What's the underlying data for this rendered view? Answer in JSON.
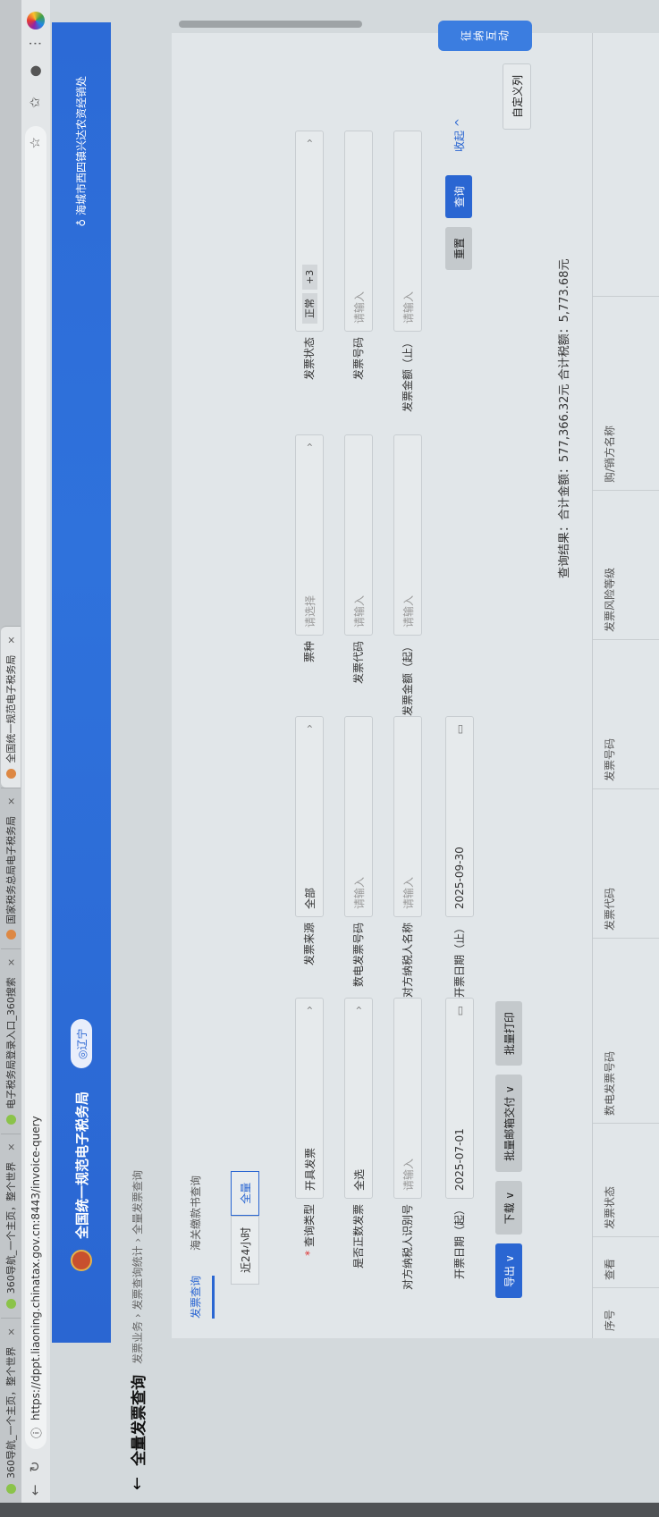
{
  "browser": {
    "tabs": [
      {
        "title": "360导航_一个主页，整个世界"
      },
      {
        "title": "360导航_一个主页，整个世界"
      },
      {
        "title": "电子税务局登录入口_360搜索"
      },
      {
        "title": "国家税务总局电子税务局"
      },
      {
        "title": "全国统一规范电子税务局"
      }
    ],
    "url": "https://dppt.liaoning.chinatax.gov.cn:8443/invoice-query"
  },
  "header": {
    "brand": "全国统一规范电子税务局",
    "region": "◎辽宁",
    "company": "海城市西四镇兴达农资经销处",
    "accent": "#2a66d2"
  },
  "page": {
    "title": "全量发票查询",
    "breadcrumb": [
      "发票业务",
      "发票查询统计",
      "全量发票查询"
    ],
    "tabs": [
      {
        "label": "发票查询",
        "active": true
      },
      {
        "label": "海关缴款书查询",
        "active": false
      }
    ],
    "quick_range": [
      {
        "label": "近24小时",
        "active": false
      },
      {
        "label": "全量",
        "active": true
      }
    ]
  },
  "form": {
    "rows": [
      [
        {
          "label": "查询类型",
          "required": true,
          "value": "开具发票",
          "kind": "select"
        },
        {
          "label": "发票来源",
          "value": "全部",
          "kind": "select"
        },
        {
          "label": "票种",
          "placeholder": "请选择",
          "kind": "select"
        },
        {
          "label": "发票状态",
          "tags": [
            "正常",
            "+3"
          ],
          "kind": "select"
        }
      ],
      [
        {
          "label": "是否正数发票",
          "value": "全选",
          "kind": "select"
        },
        {
          "label": "数电发票号码",
          "placeholder": "请输入",
          "kind": "input"
        },
        {
          "label": "发票代码",
          "placeholder": "请输入",
          "kind": "input"
        },
        {
          "label": "发票号码",
          "placeholder": "请输入",
          "kind": "input"
        }
      ],
      [
        {
          "label": "对方纳税人识别号",
          "placeholder": "请输入",
          "kind": "input"
        },
        {
          "label": "对方纳税人名称",
          "placeholder": "请输入",
          "kind": "input"
        },
        {
          "label": "发票金额（起）",
          "placeholder": "请输入",
          "kind": "input"
        },
        {
          "label": "发票金额（止）",
          "placeholder": "请输入",
          "kind": "input"
        }
      ],
      [
        {
          "label": "开票日期（起）",
          "value": "2025-07-01",
          "kind": "date"
        },
        {
          "label": "开票日期（止）",
          "value": "2025-09-30",
          "kind": "date"
        }
      ]
    ],
    "reset": "重置",
    "search": "查询",
    "collapse": "收起 ^"
  },
  "toolbar": {
    "export": "导出 ∨",
    "download": "下载 ∨",
    "email": "批量邮箱交付 ∨",
    "print": "批量打印",
    "columns": "自定义列"
  },
  "summary": "查询结果：合计金额：577,366.32元   合计税额：5,773.68元",
  "table": {
    "columns": [
      "序号",
      "查看",
      "发票状态",
      "数电发票号码",
      "发票代码",
      "发票号码",
      "发票风险等级",
      "购/销方名称"
    ]
  },
  "float": {
    "label": "征纳互动"
  }
}
